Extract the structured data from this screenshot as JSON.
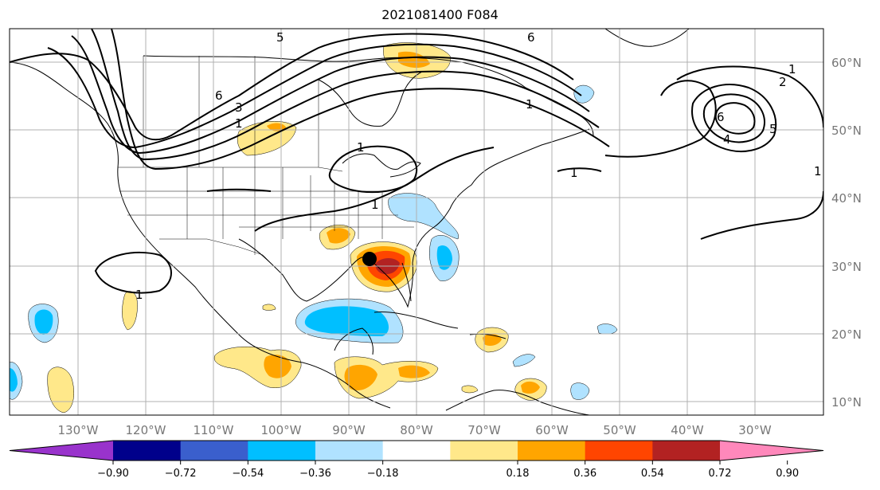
{
  "title": "2021081400 F084",
  "lon_labels": [
    "130°W",
    "120°W",
    "110°W",
    "100°W",
    "90°W",
    "80°W",
    "70°W",
    "60°W",
    "50°W",
    "40°W",
    "30°W"
  ],
  "lat_labels": [
    "60°N",
    "50°N",
    "40°N",
    "30°N",
    "20°N",
    "10°N"
  ],
  "colorbar": {
    "ticks": [
      "−0.90",
      "−0.72",
      "−0.54",
      "−0.36",
      "−0.18",
      "0.18",
      "0.36",
      "0.54",
      "0.72",
      "0.90"
    ],
    "colors": [
      "#9933cc",
      "#00008b",
      "#3a5fcd",
      "#00bfff",
      "#b0e2ff",
      "#ffffff",
      "#ffe88a",
      "#ffa500",
      "#ff4500",
      "#b22222",
      "#ff88bb"
    ]
  },
  "contour_labels": [
    "5",
    "6",
    "6",
    "3",
    "1",
    "1",
    "1",
    "1",
    "1",
    "1",
    "2",
    "6",
    "5",
    "4",
    "1",
    "1"
  ],
  "storm_marker": "black-dot"
}
